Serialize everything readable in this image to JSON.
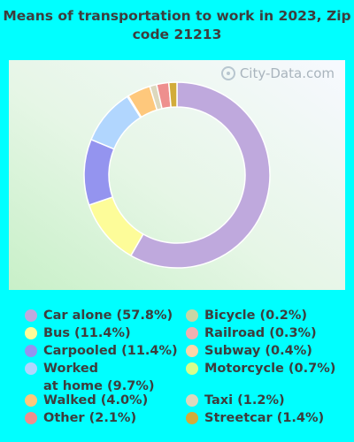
{
  "title": "Means of transportation to work in 2023, Zip code 21213",
  "watermark": "City-Data.com",
  "chart_data": {
    "type": "pie",
    "title": "Means of transportation to work in 2023, Zip code 21213",
    "legend_placement": "bottom",
    "series": [
      {
        "name": "Car alone",
        "label": "Car alone (57.8%)",
        "value": 57.8,
        "color": "#bfa9dd"
      },
      {
        "name": "Bus",
        "label": "Bus (11.4%)",
        "value": 11.4,
        "color": "#fdfc99"
      },
      {
        "name": "Carpooled",
        "label": "Carpooled (11.4%)",
        "value": 11.4,
        "color": "#9494ef"
      },
      {
        "name": "Worked at home",
        "label": "Worked\nat home (9.7%)",
        "value": 9.7,
        "color": "#b1d6fe"
      },
      {
        "name": "Walked",
        "label": "Walked (4.0%)",
        "value": 4.0,
        "color": "#fec87c"
      },
      {
        "name": "Other",
        "label": "Other (2.1%)",
        "value": 2.1,
        "color": "#ee8f8e"
      },
      {
        "name": "Bicycle",
        "label": "Bicycle (0.2%)",
        "value": 0.2,
        "color": "#c7d6a4"
      },
      {
        "name": "Railroad",
        "label": "Railroad (0.3%)",
        "value": 0.3,
        "color": "#f0b0b0"
      },
      {
        "name": "Subway",
        "label": "Subway (0.4%)",
        "value": 0.4,
        "color": "#fdd6a8"
      },
      {
        "name": "Motorcycle",
        "label": "Motorcycle (0.7%)",
        "value": 0.7,
        "color": "#d7fe8b"
      },
      {
        "name": "Taxi",
        "label": "Taxi (1.2%)",
        "value": 1.2,
        "color": "#ddd8bd"
      },
      {
        "name": "Streetcar",
        "label": "Streetcar (1.4%)",
        "value": 1.4,
        "color": "#d2ac3a"
      }
    ],
    "ring_order": [
      "Car alone",
      "Bus",
      "Carpooled",
      "Worked at home",
      "Bicycle",
      "Walked",
      "Taxi",
      "Other",
      "Streetcar"
    ]
  }
}
